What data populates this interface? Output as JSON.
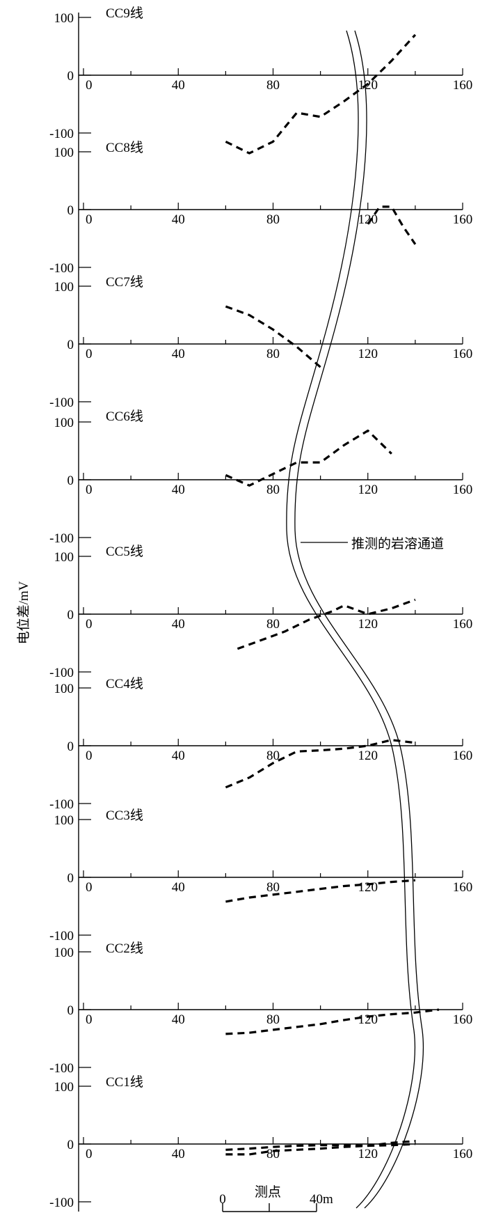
{
  "chart_data": {
    "type": "line",
    "ylabel": "电位差/mV",
    "xlabel": "测点",
    "xlim": [
      0,
      160
    ],
    "ylim": [
      -100,
      100
    ],
    "x_ticks": [
      "0",
      "40",
      "80",
      "120",
      "160"
    ],
    "y_ticks": [
      "100",
      "0",
      "-100"
    ],
    "annotation": "推测的岩溶通道",
    "scale_bar": {
      "start_label": "0",
      "end_label": "40",
      "unit": "m"
    },
    "series": [
      {
        "name": "CC9线",
        "x": [
          60,
          70,
          80,
          90,
          100,
          110,
          120,
          130,
          140
        ],
        "y": [
          -115,
          -135,
          -115,
          -65,
          -72,
          -45,
          -15,
          25,
          70
        ]
      },
      {
        "name": "CC8线",
        "x": [
          120,
          125,
          130,
          135,
          140
        ],
        "y": [
          -25,
          5,
          5,
          -30,
          -60
        ]
      },
      {
        "name": "CC7线",
        "x": [
          60,
          70,
          80,
          90,
          100
        ],
        "y": [
          65,
          50,
          25,
          -5,
          -40
        ]
      },
      {
        "name": "CC6线",
        "x": [
          60,
          70,
          80,
          90,
          100,
          110,
          120,
          130
        ],
        "y": [
          8,
          -10,
          10,
          30,
          30,
          60,
          85,
          45
        ]
      },
      {
        "name": "CC5线",
        "x": [
          65,
          75,
          85,
          95,
          105,
          110,
          120,
          130,
          140
        ],
        "y": [
          -60,
          -45,
          -30,
          -10,
          5,
          15,
          0,
          10,
          25
        ]
      },
      {
        "name": "CC4线",
        "x": [
          60,
          70,
          80,
          90,
          100,
          110,
          120,
          130,
          140
        ],
        "y": [
          -72,
          -55,
          -30,
          -10,
          -8,
          -5,
          0,
          10,
          5
        ]
      },
      {
        "name": "CC3线",
        "x": [
          60,
          70,
          80,
          90,
          100,
          110,
          120,
          130,
          140
        ],
        "y": [
          -42,
          -35,
          -30,
          -25,
          -20,
          -15,
          -12,
          -8,
          -5
        ]
      },
      {
        "name": "CC2线",
        "x": [
          60,
          70,
          80,
          90,
          100,
          110,
          120,
          130,
          140,
          150
        ],
        "y": [
          -42,
          -40,
          -35,
          -30,
          -25,
          -18,
          -12,
          -8,
          -5,
          0
        ]
      },
      {
        "name": "CC1线",
        "x": [
          60,
          70,
          80,
          90,
          100,
          110,
          120,
          130,
          140
        ],
        "y": [
          -18,
          -18,
          -12,
          -10,
          -8,
          -5,
          -3,
          2,
          5
        ]
      },
      {
        "name": "",
        "x": [
          60,
          70,
          80,
          90,
          100,
          110,
          120,
          130,
          140
        ],
        "y": [
          -10,
          -8,
          -5,
          -3,
          -2,
          -2,
          -3,
          -2,
          0
        ]
      }
    ]
  }
}
